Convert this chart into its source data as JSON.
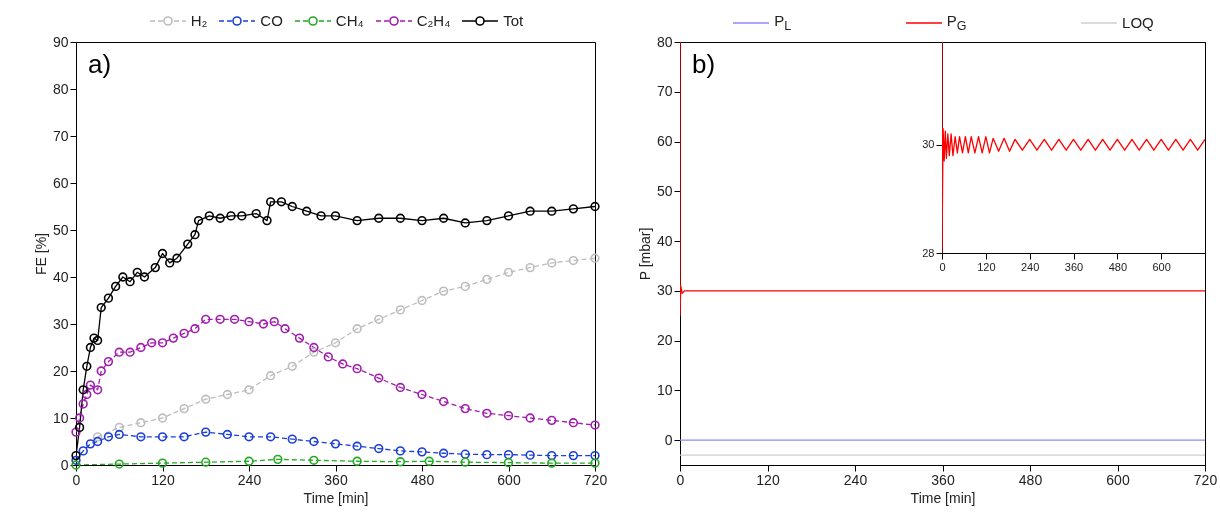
{
  "chart_data": [
    {
      "type": "line",
      "xlabel": "Time [min]",
      "ylabel": "FE [%]",
      "annotations": [
        "a)"
      ],
      "xlim": [
        0,
        720
      ],
      "xticks": [
        0,
        120,
        240,
        360,
        480,
        600,
        720
      ],
      "ylim": [
        0,
        90
      ],
      "yticks": [
        0,
        10,
        20,
        30,
        40,
        50,
        60,
        70,
        80,
        90
      ],
      "legend": "top",
      "marker": "circle",
      "series": [
        {
          "name": "H₂",
          "color": "#bdbdbd",
          "line_style": "dashed",
          "x": [
            30,
            60,
            90,
            120,
            150,
            180,
            210,
            240,
            270,
            300,
            330,
            360,
            390,
            420,
            450,
            480,
            510,
            540,
            570,
            600,
            630,
            660,
            690,
            720
          ],
          "values": [
            6,
            8,
            9,
            10,
            12,
            14,
            15,
            16,
            19,
            21,
            24,
            26,
            29,
            31,
            33,
            35,
            37,
            38,
            39.5,
            41,
            42,
            43,
            43.5,
            44
          ]
        },
        {
          "name": "CO",
          "color": "#1c3fd6",
          "line_style": "dashed",
          "x": [
            0,
            10,
            20,
            30,
            45,
            60,
            90,
            120,
            150,
            180,
            210,
            240,
            270,
            300,
            330,
            360,
            390,
            420,
            450,
            480,
            510,
            540,
            570,
            600,
            630,
            660,
            690,
            720
          ],
          "values": [
            1,
            3,
            4.5,
            5,
            6,
            6.5,
            6,
            6,
            6,
            7,
            6.5,
            6,
            6,
            5.5,
            5,
            4.5,
            4,
            3.5,
            3,
            2.8,
            2.5,
            2.3,
            2.2,
            2.2,
            2.1,
            2,
            2,
            2
          ]
        },
        {
          "name": "CH₄",
          "color": "#22aa22",
          "line_style": "dashed",
          "x": [
            0,
            60,
            120,
            180,
            240,
            280,
            330,
            390,
            450,
            490,
            540,
            600,
            660,
            720
          ],
          "values": [
            0,
            0.2,
            0.4,
            0.6,
            0.8,
            1.2,
            1,
            0.8,
            0.7,
            0.8,
            0.6,
            0.5,
            0.4,
            0.4
          ]
        },
        {
          "name": "C₂H₄",
          "color": "#a21caf",
          "line_style": "dashed",
          "x": [
            0,
            5,
            10,
            15,
            20,
            30,
            35,
            45,
            60,
            75,
            90,
            105,
            120,
            135,
            150,
            165,
            180,
            200,
            220,
            240,
            260,
            275,
            290,
            310,
            330,
            350,
            370,
            390,
            420,
            450,
            480,
            510,
            540,
            570,
            600,
            630,
            660,
            690,
            720
          ],
          "values": [
            7,
            10,
            13,
            15,
            17,
            16,
            20,
            22,
            24,
            24,
            25,
            26,
            26,
            27,
            28,
            29,
            31,
            31,
            31,
            30.5,
            30,
            30.5,
            29,
            27,
            25,
            23,
            21.5,
            20.5,
            18.5,
            16.5,
            15,
            13.5,
            12,
            11,
            10.5,
            10,
            9.5,
            9,
            8.5
          ]
        },
        {
          "name": "Tot",
          "color": "#000000",
          "line_style": "solid",
          "x": [
            0,
            5,
            10,
            15,
            20,
            25,
            30,
            35,
            45,
            55,
            65,
            75,
            85,
            95,
            110,
            120,
            130,
            140,
            155,
            165,
            170,
            185,
            200,
            215,
            230,
            250,
            265,
            270,
            285,
            300,
            320,
            340,
            360,
            390,
            420,
            450,
            480,
            510,
            540,
            570,
            600,
            630,
            660,
            690,
            720
          ],
          "values": [
            2,
            8,
            16,
            21,
            25,
            27,
            26.5,
            33.5,
            35.5,
            38,
            40,
            39,
            41,
            40,
            42,
            45,
            43,
            44,
            47,
            49,
            52,
            53,
            52.5,
            53,
            53,
            53.5,
            52,
            56,
            56,
            55,
            54,
            53,
            53,
            52,
            52.5,
            52.5,
            52,
            52.5,
            51.5,
            52,
            53,
            54,
            54,
            54.5,
            55
          ]
        }
      ]
    },
    {
      "type": "line",
      "xlabel": "Time [min]",
      "ylabel": "P [mbar]",
      "annotations": [
        "b)"
      ],
      "xlim": [
        0,
        720
      ],
      "xticks": [
        0,
        120,
        240,
        360,
        480,
        600,
        720
      ],
      "ylim": [
        -5,
        80
      ],
      "yticks": [
        0,
        10,
        20,
        30,
        40,
        50,
        60,
        70,
        80
      ],
      "legend": "top",
      "marker": "none",
      "series": [
        {
          "name": "P$_{L}$",
          "color": "#8a8aff",
          "x": [
            0,
            720
          ],
          "values": [
            0,
            0
          ]
        },
        {
          "name": "P$_{G}$",
          "color": "#ff0000",
          "x": [
            0,
            0,
            1,
            3,
            6,
            720
          ],
          "values": [
            80,
            25,
            31,
            29.5,
            30,
            30
          ]
        },
        {
          "name": "LOQ",
          "color": "#cfcfcf",
          "x": [
            0,
            720
          ],
          "values": [
            -3,
            -3
          ]
        }
      ]
    },
    {
      "type": "line",
      "xlim": [
        0,
        720
      ],
      "xticks": [
        0,
        120,
        240,
        360,
        480,
        600
      ],
      "ylim": [
        28,
        31.9
      ],
      "yticks": [
        28,
        30
      ],
      "marker": "none",
      "series": [
        {
          "color": "#ff0000",
          "x": [
            0,
            0,
            3,
            6,
            9,
            12,
            16,
            20,
            25,
            30,
            36,
            42,
            48,
            56,
            64,
            72,
            80,
            90,
            100,
            110,
            120,
            130,
            140,
            155,
            170,
            185,
            200,
            220,
            240,
            260,
            280,
            300,
            320,
            340,
            360,
            380,
            400,
            420,
            440,
            460,
            480,
            500,
            520,
            540,
            560,
            580,
            600,
            620,
            640,
            660,
            680,
            700,
            720
          ],
          "values": [
            31.9,
            28,
            30.3,
            29.7,
            30.25,
            29.75,
            30.2,
            29.8,
            30.2,
            29.8,
            30.15,
            29.85,
            30.15,
            29.85,
            30.15,
            29.85,
            30.15,
            29.85,
            30.15,
            29.85,
            30.15,
            29.85,
            30.12,
            29.88,
            30.12,
            29.88,
            30.1,
            29.9,
            30.1,
            29.9,
            30.1,
            29.9,
            30.1,
            29.9,
            30.1,
            29.9,
            30.1,
            29.9,
            30.1,
            29.9,
            30.1,
            29.9,
            30.1,
            29.9,
            30.1,
            29.9,
            30.1,
            29.9,
            30.1,
            29.9,
            30.1,
            29.9,
            30.1
          ]
        }
      ]
    }
  ]
}
